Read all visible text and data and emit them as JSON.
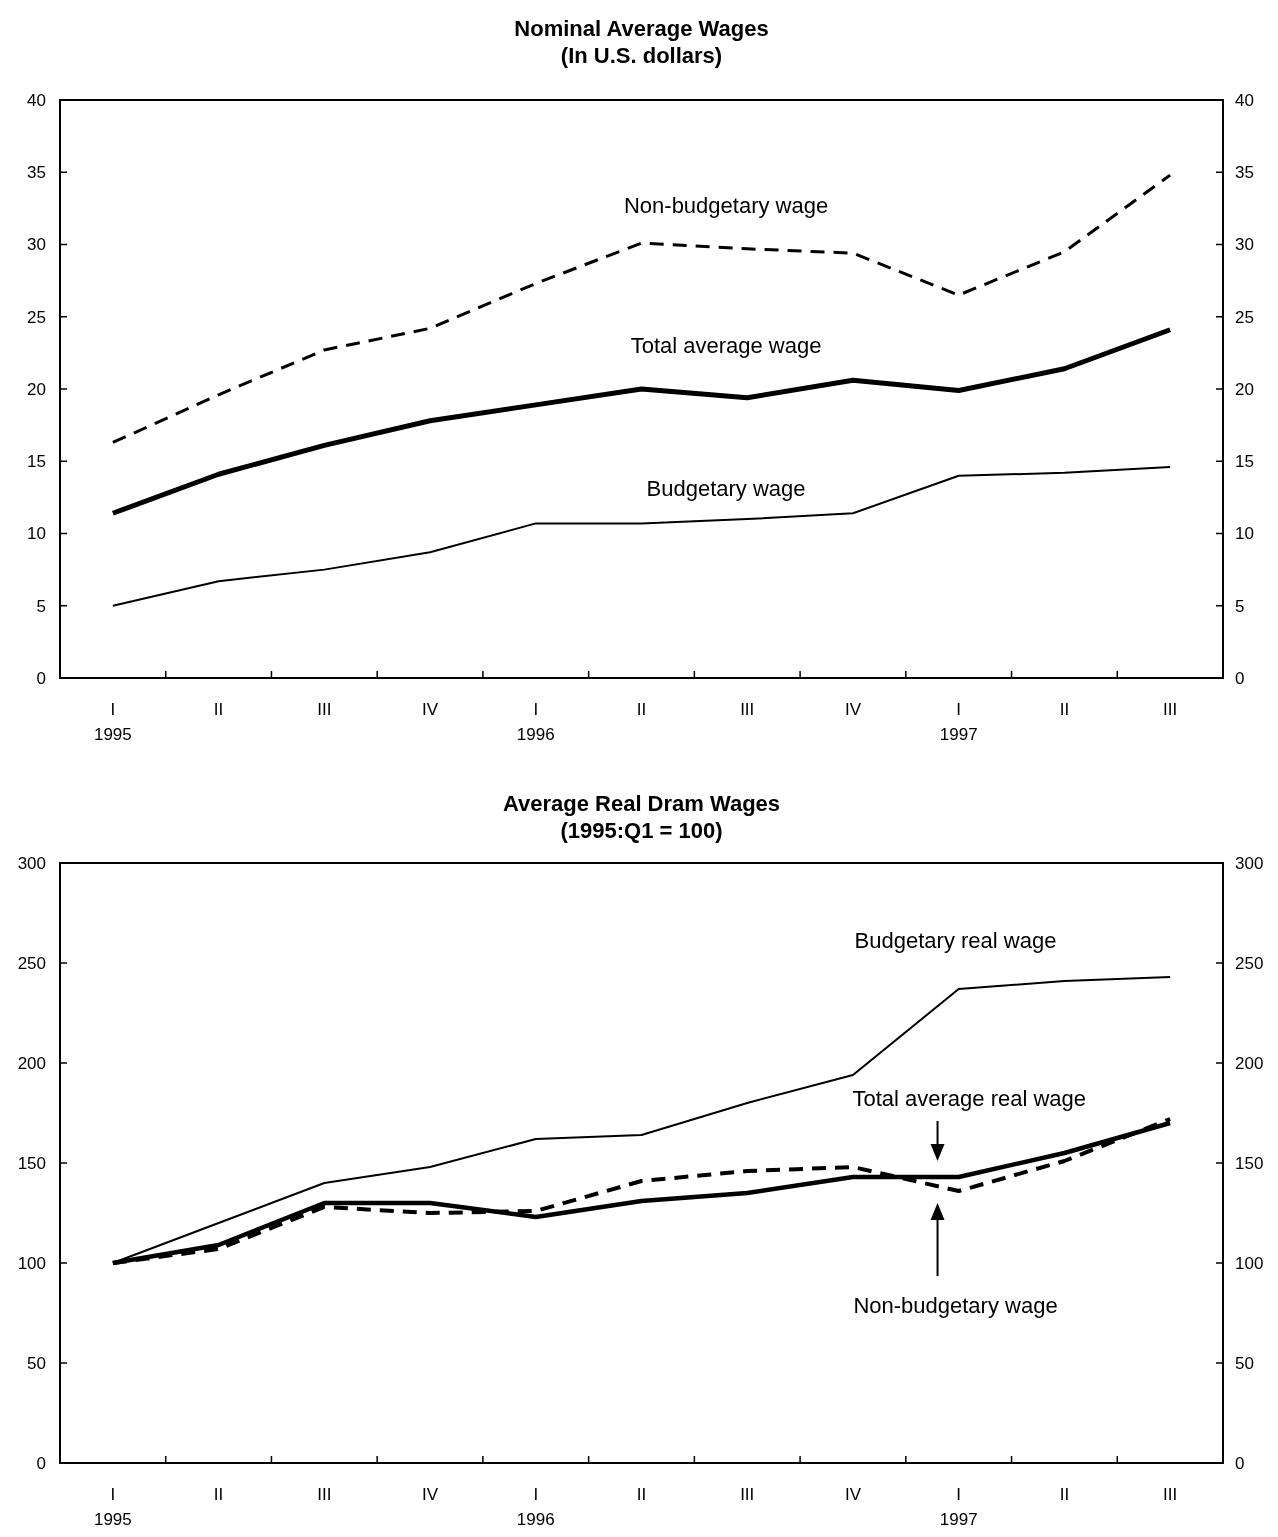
{
  "chart_data": [
    {
      "type": "line",
      "title": "Nominal Average Wages\n(In U.S. dollars)",
      "categories": [
        "I\n1995",
        "II",
        "III",
        "IV",
        "I\n1996",
        "II",
        "III",
        "IV",
        "I\n1997",
        "II",
        "III"
      ],
      "series": [
        {
          "name": "Non-budgetary wage",
          "color": "#000000",
          "line_style": "dashed",
          "values": [
            16.3,
            19.6,
            22.7,
            24.2,
            27.3,
            30.1,
            29.7,
            29.4,
            26.5,
            29.5,
            34.8
          ]
        },
        {
          "name": "Total average wage",
          "color": "#000000",
          "line_style": "solid",
          "values": [
            11.4,
            14.1,
            16.1,
            17.8,
            18.9,
            20.0,
            19.4,
            20.6,
            19.9,
            21.4,
            24.1
          ]
        },
        {
          "name": "Budgetary wage",
          "color": "#000000",
          "line_style": "solid",
          "values": [
            5.0,
            6.7,
            7.5,
            8.7,
            10.7,
            10.7,
            11.0,
            11.4,
            14.0,
            14.2,
            14.6
          ]
        }
      ],
      "ylim": [
        0,
        40
      ],
      "yticks": [
        0,
        5,
        10,
        15,
        20,
        25,
        30,
        35,
        40
      ],
      "y2lim": [
        0,
        40
      ],
      "y2ticks": [
        0,
        5,
        10,
        15,
        20,
        25,
        30,
        35,
        40
      ],
      "grid": false,
      "marker": "none"
    },
    {
      "type": "line",
      "title": "Average Real Dram Wages\n(1995:Q1 = 100)",
      "categories": [
        "I\n1995",
        "II",
        "III",
        "IV",
        "I\n1996",
        "II",
        "III",
        "IV",
        "I\n1997",
        "II",
        "III"
      ],
      "series": [
        {
          "name": "Budgetary real wage",
          "color": "#000000",
          "line_style": "solid",
          "values": [
            100,
            120,
            140,
            148,
            162,
            164,
            180,
            194,
            237,
            241,
            243
          ]
        },
        {
          "name": "Total average real wage",
          "color": "#000000",
          "line_style": "solid",
          "values": [
            100,
            109,
            130,
            130,
            123,
            131,
            135,
            143,
            143,
            155,
            170
          ]
        },
        {
          "name": "Non-budgetary wage",
          "color": "#000000",
          "line_style": "dashed",
          "values": [
            100,
            107,
            128,
            125,
            126,
            141,
            146,
            148,
            136,
            151,
            172
          ]
        }
      ],
      "ylim": [
        0,
        300
      ],
      "yticks": [
        0,
        50,
        100,
        150,
        200,
        250,
        300
      ],
      "y2lim": [
        0,
        300
      ],
      "y2ticks": [
        0,
        50,
        100,
        150,
        200,
        250,
        300
      ],
      "grid": false,
      "marker": "none"
    }
  ]
}
